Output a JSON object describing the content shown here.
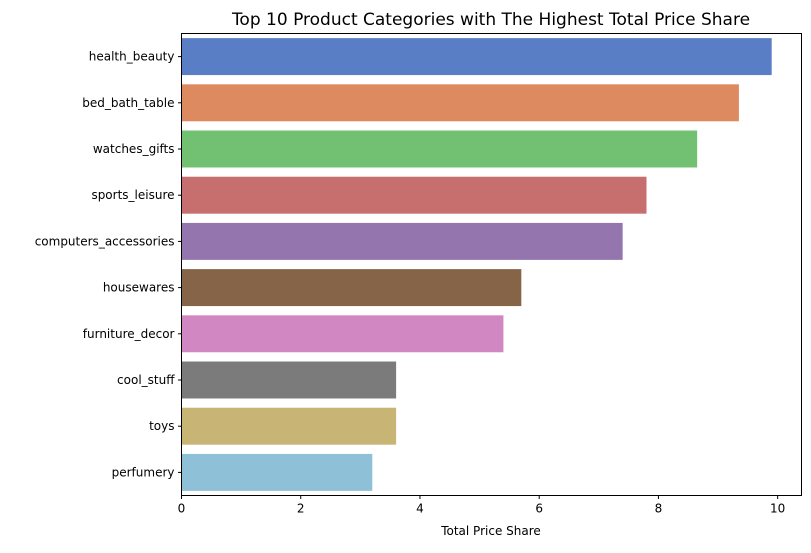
{
  "chart_data": {
    "type": "bar",
    "orientation": "horizontal",
    "title": "Top 10 Product Categories with The Highest Total Price Share",
    "xlabel": "Total Price Share",
    "ylabel": "",
    "xlim": [
      0,
      10.4
    ],
    "xticks": [
      "0",
      "2",
      "4",
      "6",
      "8",
      "10"
    ],
    "grid": false,
    "categories": [
      "health_beauty",
      "bed_bath_table",
      "watches_gifts",
      "sports_leisure",
      "computers_accessories",
      "housewares",
      "furniture_decor",
      "cool_stuff",
      "toys",
      "perfumery"
    ],
    "values": [
      9.9,
      9.35,
      8.65,
      7.8,
      7.4,
      5.7,
      5.4,
      3.6,
      3.6,
      3.2
    ],
    "colors": [
      "#5a7ec5",
      "#dd8a60",
      "#72c172",
      "#c66f6e",
      "#9475ae",
      "#856448",
      "#d188c2",
      "#7b7b7b",
      "#c8b474",
      "#8ec0d8"
    ]
  }
}
